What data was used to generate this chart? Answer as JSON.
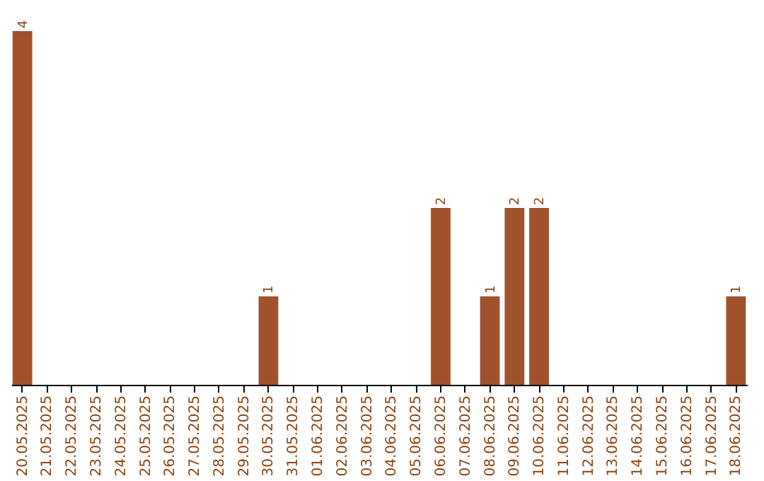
{
  "chart_data": {
    "type": "bar",
    "categories": [
      "20.05.2025",
      "21.05.2025",
      "22.05.2025",
      "23.05.2025",
      "24.05.2025",
      "25.05.2025",
      "26.05.2025",
      "27.05.2025",
      "28.05.2025",
      "29.05.2025",
      "30.05.2025",
      "31.05.2025",
      "01.06.2025",
      "02.06.2025",
      "03.06.2025",
      "04.06.2025",
      "05.06.2025",
      "06.06.2025",
      "07.06.2025",
      "08.06.2025",
      "09.06.2025",
      "10.06.2025",
      "11.06.2025",
      "12.06.2025",
      "13.06.2025",
      "14.06.2025",
      "15.06.2025",
      "16.06.2025",
      "17.06.2025",
      "18.06.2025"
    ],
    "values": [
      4,
      0,
      0,
      0,
      0,
      0,
      0,
      0,
      0,
      0,
      1,
      0,
      0,
      0,
      0,
      0,
      0,
      2,
      0,
      1,
      2,
      2,
      0,
      0,
      0,
      0,
      0,
      0,
      0,
      1
    ],
    "value_labels": [
      "4",
      null,
      null,
      null,
      null,
      null,
      null,
      null,
      null,
      null,
      "1",
      null,
      null,
      null,
      null,
      null,
      null,
      "2",
      null,
      "1",
      "2",
      "2",
      null,
      null,
      null,
      null,
      null,
      null,
      null,
      "1"
    ],
    "color": "#a0522d",
    "tick_labels": "x"
  }
}
